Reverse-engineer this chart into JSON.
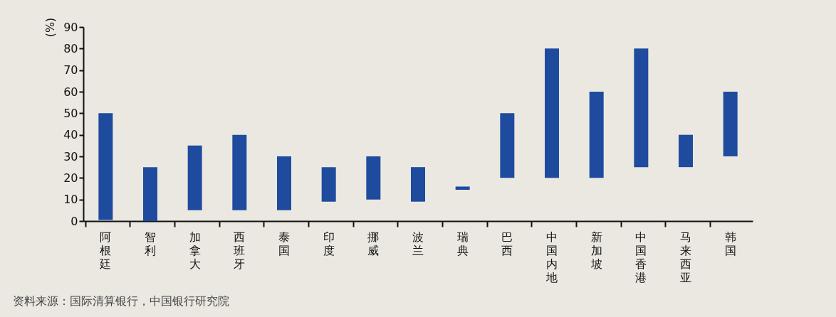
{
  "chart_data": {
    "type": "bar",
    "ylabel": "(%)",
    "annotations": [
      "资料来源：国际清算银行，中国银行研究院"
    ],
    "categories": [
      "阿根廷",
      "智利",
      "加拿大",
      "西班牙",
      "泰国",
      "印度",
      "挪威",
      "波兰",
      "瑞典",
      "巴西",
      "中国内地",
      "新加坡",
      "中国香港",
      "马来西亚",
      "韩国"
    ],
    "base": [
      0.5,
      0,
      5,
      5,
      5,
      9,
      10,
      9,
      14.5,
      20,
      20,
      20,
      25,
      25,
      30
    ],
    "values": [
      49.5,
      25,
      30,
      35,
      25,
      16,
      20,
      16,
      1.5,
      30,
      60,
      40,
      55,
      15,
      30
    ],
    "color": "#1f4b9e",
    "ylim": [
      0,
      90
    ],
    "yticks": [
      0,
      10,
      20,
      30,
      40,
      50,
      60,
      70,
      80,
      90
    ],
    "grid": false
  }
}
